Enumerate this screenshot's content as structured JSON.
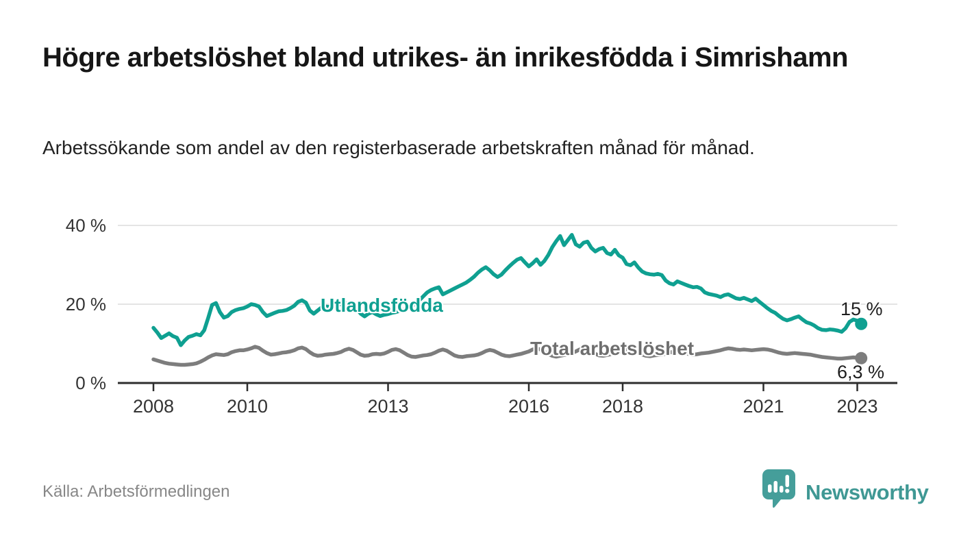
{
  "header": {
    "title": "Högre arbetslöshet bland utrikes- än inrikesfödda i Simrishamn",
    "subtitle": "Arbetssökande som andel av den registerbaserade arbetskraften månad för månad."
  },
  "footer": {
    "source": "Källa: Arbetsförmedlingen",
    "brand": "Newsworthy",
    "brand_color": "#3f9894"
  },
  "chart_data": {
    "type": "line",
    "title": "",
    "xlabel": "",
    "ylabel": "",
    "grid": "horizontal",
    "x_start_year": 2008,
    "x_start_month": 1,
    "x_step_months": 1,
    "x_ticks": [
      {
        "year": 2008,
        "label": "2008"
      },
      {
        "year": 2010,
        "label": "2010"
      },
      {
        "year": 2013,
        "label": "2013"
      },
      {
        "year": 2016,
        "label": "2016"
      },
      {
        "year": 2018,
        "label": "2018"
      },
      {
        "year": 2021,
        "label": "2021"
      },
      {
        "year": 2023,
        "label": "2023"
      }
    ],
    "y_ticks": [
      {
        "value": 0,
        "label": "0 %"
      },
      {
        "value": 20,
        "label": "20 %"
      },
      {
        "value": 40,
        "label": "40 %"
      }
    ],
    "ylim": [
      0,
      46
    ],
    "axis_color": "#2d2d2d",
    "grid_color": "#dcdcdc",
    "tick_text_color": "#333333",
    "series": [
      {
        "name": "Utlandsfödda",
        "color": "#0fa091",
        "end_label": "15 %",
        "values": [
          14.0,
          12.8,
          11.4,
          12.0,
          12.6,
          11.9,
          11.5,
          9.6,
          10.8,
          11.7,
          12.0,
          12.4,
          12.1,
          13.4,
          16.5,
          19.8,
          20.3,
          18.0,
          16.6,
          17.0,
          18.0,
          18.5,
          18.8,
          19.0,
          19.4,
          20.0,
          19.8,
          19.4,
          18.0,
          17.0,
          17.4,
          17.8,
          18.2,
          18.3,
          18.5,
          19.0,
          19.6,
          20.6,
          21.0,
          20.4,
          18.4,
          17.6,
          18.4,
          19.2,
          19.4,
          19.3,
          19.6,
          19.8,
          20.0,
          20.4,
          19.7,
          19.2,
          18.8,
          17.6,
          16.9,
          17.6,
          18.0,
          17.4,
          17.0,
          17.3,
          17.5,
          17.8,
          18.0,
          18.3,
          18.6,
          19.0,
          19.5,
          20.2,
          21.0,
          22.0,
          23.0,
          23.6,
          24.0,
          24.3,
          22.5,
          23.0,
          23.5,
          24.0,
          24.5,
          25.0,
          25.5,
          26.2,
          27.0,
          28.0,
          28.8,
          29.4,
          28.6,
          27.6,
          26.9,
          27.5,
          28.6,
          29.6,
          30.5,
          31.3,
          31.7,
          30.6,
          29.6,
          30.4,
          31.4,
          30.0,
          31.0,
          32.5,
          34.5,
          36.0,
          37.3,
          35.0,
          36.3,
          37.6,
          35.2,
          34.6,
          35.6,
          35.9,
          34.3,
          33.4,
          34.0,
          34.3,
          33.0,
          32.6,
          33.8,
          32.4,
          31.8,
          30.2,
          29.9,
          30.6,
          29.3,
          28.3,
          27.8,
          27.6,
          27.5,
          27.7,
          27.4,
          26.0,
          25.3,
          25.0,
          25.8,
          25.4,
          25.0,
          24.6,
          24.3,
          24.4,
          24.0,
          23.0,
          22.6,
          22.4,
          22.2,
          21.8,
          22.3,
          22.5,
          22.0,
          21.5,
          21.3,
          21.6,
          21.2,
          20.8,
          21.4,
          20.6,
          19.8,
          19.0,
          18.3,
          17.8,
          17.0,
          16.3,
          15.9,
          16.2,
          16.6,
          16.9,
          16.1,
          15.4,
          15.1,
          14.6,
          13.9,
          13.5,
          13.4,
          13.6,
          13.5,
          13.3,
          13.0,
          13.9,
          15.5,
          16.1,
          15.8,
          15.0
        ]
      },
      {
        "name": "Total arbetslöshet",
        "color": "#7d7d7d",
        "end_label": "6,3 %",
        "values": [
          6.0,
          5.7,
          5.4,
          5.1,
          4.9,
          4.8,
          4.7,
          4.6,
          4.6,
          4.7,
          4.8,
          5.0,
          5.4,
          5.9,
          6.5,
          7.0,
          7.3,
          7.2,
          7.1,
          7.3,
          7.8,
          8.1,
          8.3,
          8.3,
          8.5,
          8.8,
          9.2,
          8.9,
          8.2,
          7.6,
          7.2,
          7.3,
          7.5,
          7.7,
          7.8,
          8.0,
          8.3,
          8.8,
          9.0,
          8.6,
          7.8,
          7.2,
          6.9,
          7.0,
          7.2,
          7.3,
          7.4,
          7.6,
          7.9,
          8.4,
          8.7,
          8.4,
          7.8,
          7.2,
          6.9,
          7.0,
          7.3,
          7.4,
          7.3,
          7.5,
          7.9,
          8.4,
          8.6,
          8.3,
          7.7,
          7.1,
          6.7,
          6.6,
          6.8,
          7.0,
          7.1,
          7.3,
          7.7,
          8.2,
          8.5,
          8.2,
          7.6,
          7.0,
          6.7,
          6.6,
          6.8,
          6.9,
          7.0,
          7.2,
          7.6,
          8.1,
          8.4,
          8.2,
          7.7,
          7.2,
          6.9,
          6.8,
          7.0,
          7.2,
          7.4,
          7.7,
          8.0,
          8.5,
          8.8,
          8.5,
          7.9,
          7.3,
          6.9,
          6.7,
          6.9,
          7.1,
          7.3,
          7.6,
          8.0,
          8.5,
          8.8,
          8.6,
          8.0,
          7.4,
          7.0,
          6.9,
          7.1,
          7.3,
          7.5,
          7.8,
          8.1,
          8.4,
          8.6,
          8.3,
          7.7,
          7.2,
          6.9,
          6.8,
          7.0,
          7.1,
          7.2,
          7.4,
          7.7,
          8.0,
          8.2,
          8.0,
          7.6,
          7.3,
          7.2,
          7.3,
          7.5,
          7.6,
          7.7,
          7.9,
          8.1,
          8.3,
          8.6,
          8.8,
          8.7,
          8.5,
          8.4,
          8.5,
          8.4,
          8.3,
          8.4,
          8.5,
          8.6,
          8.5,
          8.3,
          8.0,
          7.7,
          7.5,
          7.4,
          7.5,
          7.6,
          7.5,
          7.4,
          7.3,
          7.2,
          7.0,
          6.8,
          6.6,
          6.5,
          6.4,
          6.3,
          6.2,
          6.2,
          6.3,
          6.4,
          6.5,
          6.4,
          6.3
        ]
      }
    ]
  }
}
